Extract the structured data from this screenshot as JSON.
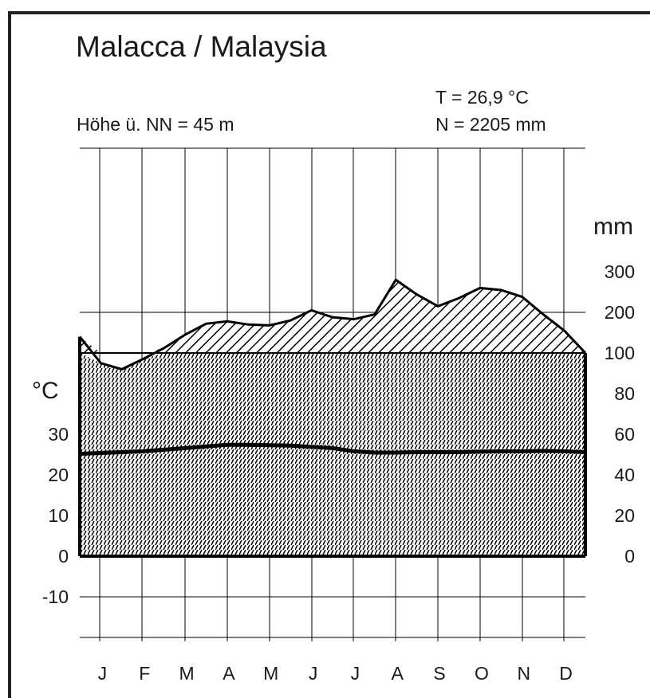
{
  "chart_data": {
    "type": "climate_diagram",
    "title": "Malacca / Malaysia",
    "altitude_label": "Höhe ü. NN = 45 m",
    "temperature_summary": "T  = 26,9 °C",
    "precipitation_summary": "N = 2205  mm",
    "categories": [
      "J",
      "F",
      "M",
      "A",
      "M",
      "J",
      "J",
      "A",
      "S",
      "O",
      "N",
      "D"
    ],
    "left_axis": {
      "label": "°C",
      "ticks": [
        "30",
        "20",
        "10",
        "0",
        "-10"
      ],
      "tick_values": [
        30,
        20,
        10,
        0,
        -10
      ],
      "range": [
        -20,
        60
      ]
    },
    "right_axis": {
      "label": "mm",
      "ticks": [
        "300",
        "200",
        "100",
        "80",
        "60",
        "40",
        "20",
        "0"
      ],
      "tick_values": [
        300,
        200,
        100,
        80,
        60,
        40,
        20,
        0
      ],
      "scale_note": "0-100 mm linear at 20 mm per 10 °C; above 100 mm compressed at 100 mm per 10 °C"
    },
    "series": [
      {
        "name": "Temperature",
        "unit": "°C",
        "x": [
          0,
          0.5,
          1,
          1.5,
          2,
          2.5,
          3,
          3.5,
          4,
          4.5,
          5,
          5.5,
          6,
          6.5,
          7,
          7.5,
          8,
          8.5,
          9,
          9.5,
          10,
          10.5,
          11,
          11.5,
          12
        ],
        "values": [
          25.2,
          25.4,
          25.6,
          25.8,
          26.2,
          26.6,
          27.0,
          27.4,
          27.4,
          27.3,
          27.2,
          26.9,
          26.6,
          25.8,
          25.5,
          25.5,
          25.6,
          25.6,
          25.6,
          25.7,
          25.8,
          25.8,
          25.9,
          25.8,
          25.6
        ]
      },
      {
        "name": "Precipitation",
        "unit": "mm",
        "x": [
          0,
          0.5,
          1,
          1.5,
          2,
          2.5,
          3,
          3.5,
          4,
          4.5,
          5,
          5.5,
          6,
          6.5,
          7,
          7.5,
          8,
          8.5,
          9,
          9.5,
          10,
          10.5,
          11,
          11.5,
          12
        ],
        "values": [
          140,
          95,
          92,
          97,
          112,
          145,
          172,
          178,
          170,
          168,
          180,
          205,
          188,
          183,
          195,
          280,
          244,
          215,
          235,
          260,
          255,
          238,
          195,
          155,
          100
        ]
      }
    ],
    "grid": true,
    "colors": {
      "axis": "#000000",
      "grid": "#000000",
      "text": "#1a1a1a"
    }
  }
}
